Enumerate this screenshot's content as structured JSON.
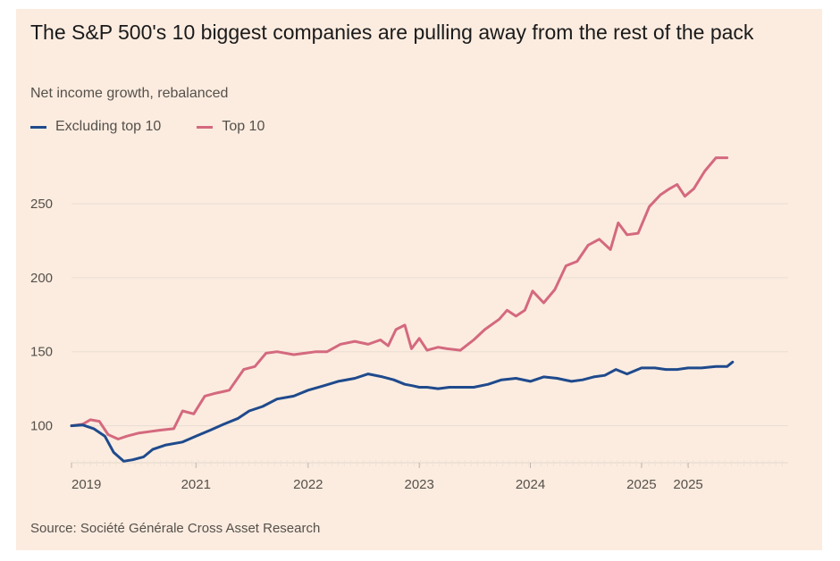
{
  "chart_data": {
    "type": "line",
    "title": "The S&P 500's 10 biggest companies are pulling away from the rest of the pack",
    "subtitle": "Net income growth, rebalanced",
    "source": "Source: Société Générale Cross Asset Research",
    "xlabel": "",
    "ylabel": "",
    "xlim": [
      2019.0,
      2025.45
    ],
    "ylim": [
      75,
      285
    ],
    "y_ticks": [
      100,
      150,
      200,
      250
    ],
    "x_ticks": [
      {
        "value": 2019.0,
        "label": "2019"
      },
      {
        "value": 2020.12,
        "label": "2021"
      },
      {
        "value": 2021.13,
        "label": "2022"
      },
      {
        "value": 2022.13,
        "label": "2023"
      },
      {
        "value": 2023.13,
        "label": "2024"
      },
      {
        "value": 2024.13,
        "label": "2025"
      },
      {
        "value": 2024.55,
        "label": "2025"
      }
    ],
    "grid": true,
    "legend_position": "top-left",
    "series": [
      {
        "name": "Excluding top 10",
        "color": "#1f4a8c",
        "x": [
          2019.0,
          2019.1,
          2019.2,
          2019.3,
          2019.38,
          2019.47,
          2019.55,
          2019.65,
          2019.73,
          2019.85,
          2020.0,
          2020.12,
          2020.25,
          2020.37,
          2020.5,
          2020.6,
          2020.72,
          2020.85,
          2021.0,
          2021.13,
          2021.27,
          2021.4,
          2021.55,
          2021.67,
          2021.8,
          2021.9,
          2022.0,
          2022.07,
          2022.13,
          2022.2,
          2022.3,
          2022.4,
          2022.5,
          2022.62,
          2022.75,
          2022.87,
          2023.0,
          2023.13,
          2023.25,
          2023.37,
          2023.5,
          2023.6,
          2023.7,
          2023.8,
          2023.9,
          2024.0,
          2024.13,
          2024.25,
          2024.35,
          2024.45,
          2024.55,
          2024.67,
          2024.8,
          2024.9,
          2024.95
        ],
        "values": [
          100,
          100.5,
          98,
          93,
          82,
          76,
          77,
          79,
          84,
          87,
          89,
          93,
          97,
          101,
          105,
          110,
          113,
          118,
          120,
          124,
          127,
          130,
          132,
          135,
          133,
          131,
          128,
          127,
          126,
          126,
          125,
          126,
          126,
          126,
          128,
          131,
          132,
          130,
          133,
          132,
          130,
          131,
          133,
          134,
          138,
          135,
          139,
          139,
          138,
          138,
          139,
          139,
          140,
          140,
          143
        ]
      },
      {
        "name": "Top 10",
        "color": "#d4697e",
        "x": [
          2019.0,
          2019.1,
          2019.17,
          2019.25,
          2019.33,
          2019.42,
          2019.5,
          2019.6,
          2019.7,
          2019.8,
          2019.92,
          2020.0,
          2020.1,
          2020.2,
          2020.3,
          2020.42,
          2020.55,
          2020.65,
          2020.75,
          2020.85,
          2021.0,
          2021.1,
          2021.2,
          2021.3,
          2021.42,
          2021.55,
          2021.67,
          2021.78,
          2021.85,
          2021.92,
          2022.0,
          2022.06,
          2022.13,
          2022.2,
          2022.3,
          2022.38,
          2022.5,
          2022.62,
          2022.72,
          2022.85,
          2022.92,
          2023.0,
          2023.08,
          2023.15,
          2023.25,
          2023.35,
          2023.45,
          2023.55,
          2023.65,
          2023.75,
          2023.85,
          2023.92,
          2024.0,
          2024.1,
          2024.2,
          2024.3,
          2024.38,
          2024.45,
          2024.52,
          2024.6,
          2024.7,
          2024.8,
          2024.9
        ],
        "values": [
          100,
          101,
          104,
          103,
          94,
          91,
          93,
          95,
          96,
          97,
          98,
          110,
          108,
          120,
          122,
          124,
          138,
          140,
          149,
          150,
          148,
          149,
          150,
          150,
          155,
          157,
          155,
          158,
          154,
          165,
          168,
          152,
          159,
          151,
          153,
          152,
          151,
          158,
          165,
          172,
          178,
          174,
          178,
          191,
          183,
          192,
          208,
          211,
          222,
          226,
          219,
          237,
          229,
          230,
          248,
          256,
          260,
          263,
          255,
          260,
          272,
          281,
          281
        ]
      }
    ]
  }
}
